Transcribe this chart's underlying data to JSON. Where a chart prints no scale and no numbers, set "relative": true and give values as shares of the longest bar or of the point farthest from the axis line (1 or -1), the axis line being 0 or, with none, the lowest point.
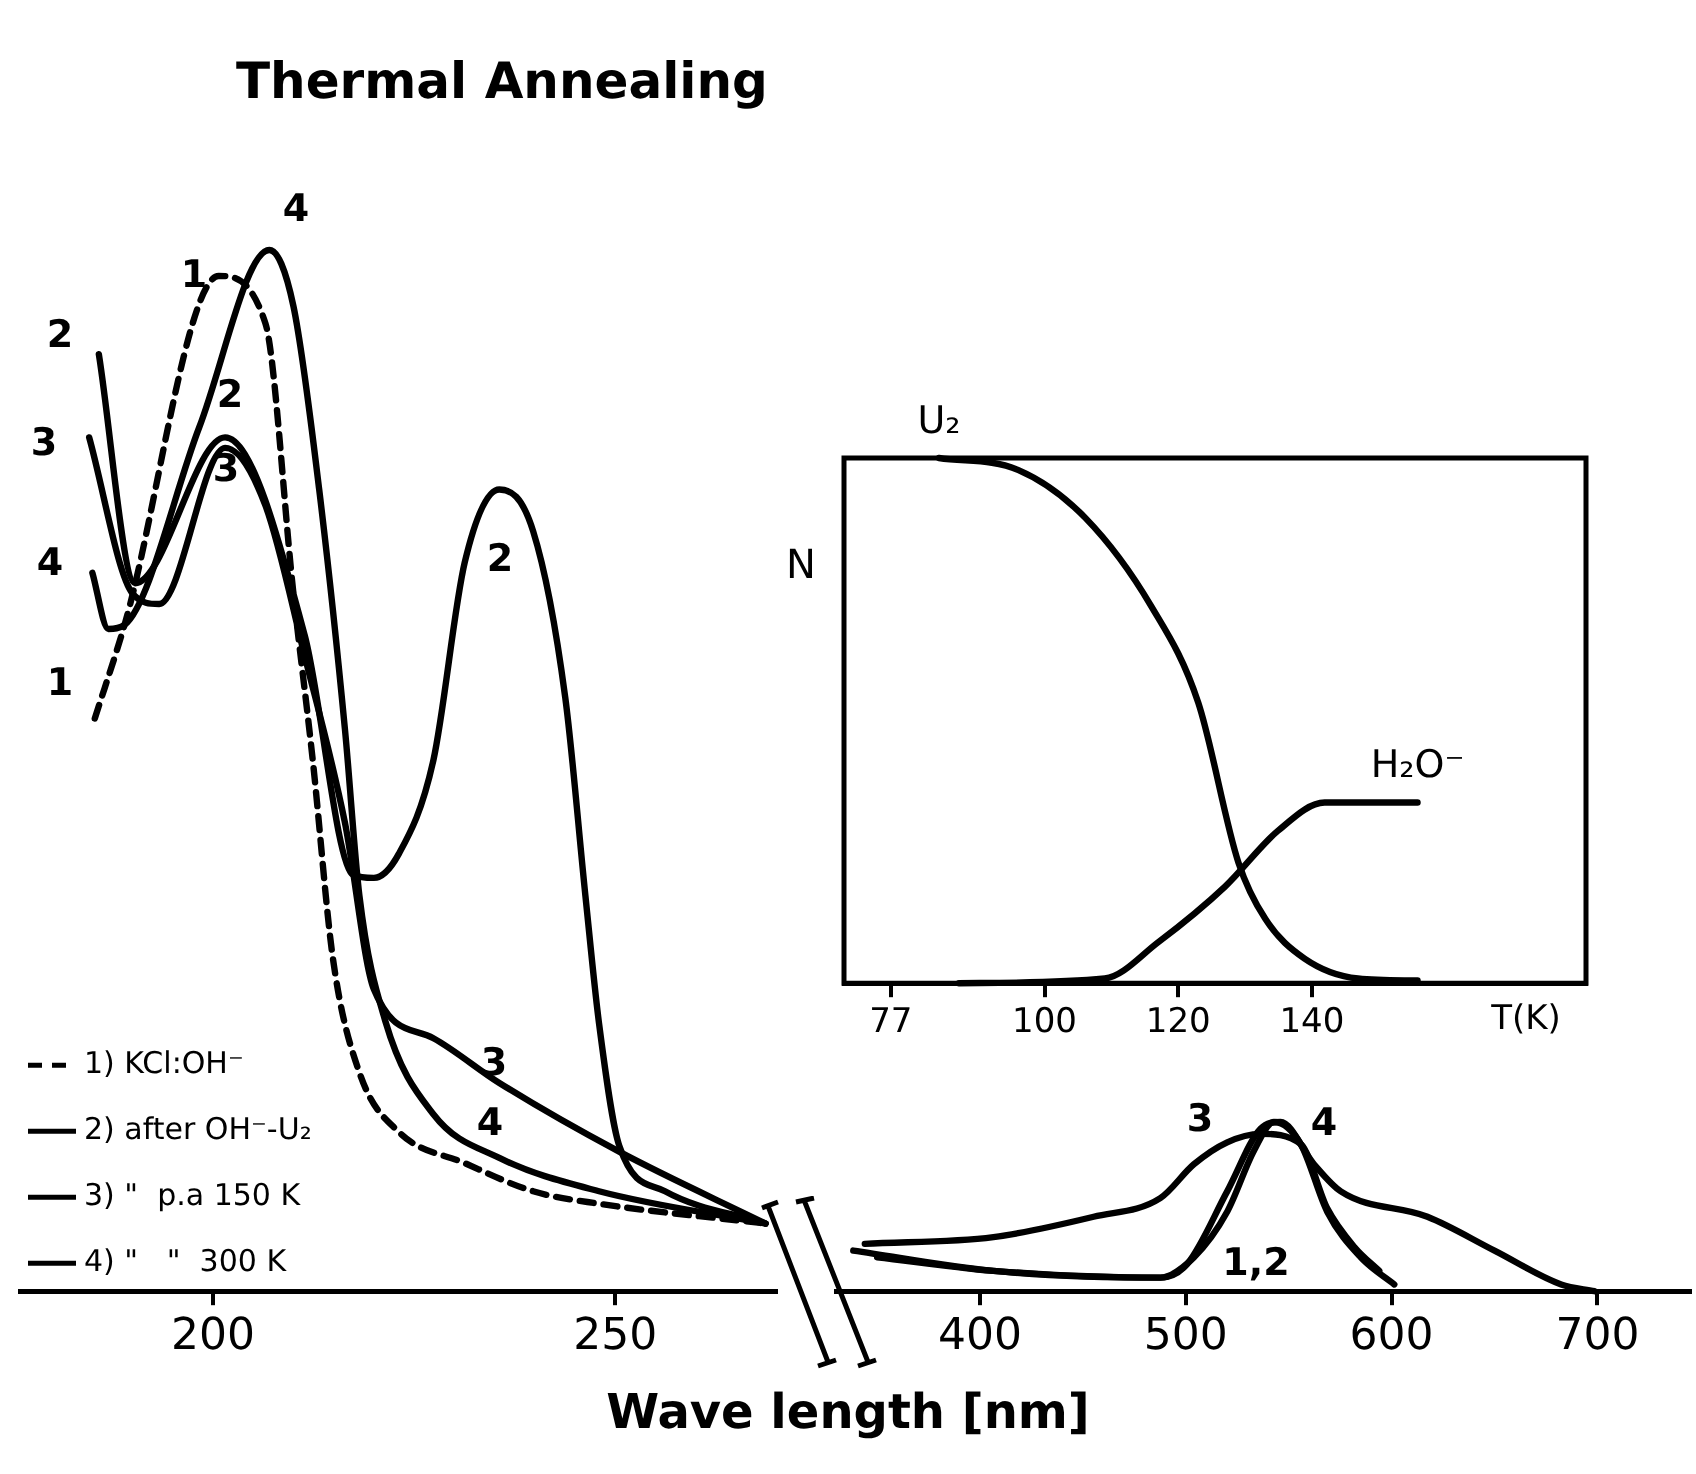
{
  "chart_data": [
    {
      "type": "line",
      "title": "Thermal Annealing",
      "xlabel": "Wave length [nm]",
      "relative": true,
      "xlim": [
        176,
        270
      ],
      "xticks": [
        200,
        250
      ],
      "grid": false,
      "legend": "bottom left",
      "marker": "none",
      "series": [
        {
          "name": "1) KCl:OH⁻",
          "color": "#000000",
          "line_style": "dashed",
          "x": [
            185.3,
            189,
            200.7,
            206.5,
            210,
            212.4,
            214.9,
            218.2,
            223.1,
            231.3,
            239.8,
            248,
            268.7
          ],
          "values": [
            0.55,
            0.64,
            0.975,
            0.93,
            0.67,
            0.51,
            0.32,
            0.21,
            0.153,
            0.123,
            0.096,
            0.084,
            0.065
          ]
        },
        {
          "name": "2) after OH⁻-U₂",
          "color": "#000000",
          "line_style": "solid",
          "x": [
            185.8,
            190.3,
            201.5,
            211.4,
            217.4,
            220,
            223.1,
            227.4,
            231.3,
            235.6,
            239.8,
            243.8,
            246.3,
            248,
            250.5,
            256.2,
            268.7
          ],
          "values": [
            0.9,
            0.68,
            0.82,
            0.63,
            0.4,
            0.397,
            0.42,
            0.51,
            0.7,
            0.77,
            0.73,
            0.57,
            0.38,
            0.257,
            0.14,
            0.096,
            0.065
          ]
        },
        {
          "name": "3) \"  p.a 150 K",
          "color": "#000000",
          "line_style": "solid",
          "x": [
            184.6,
            190,
            193.3,
            201.5,
            206.5,
            211.4,
            216.4,
            220,
            227.4,
            235.6,
            250.5,
            268.7
          ],
          "values": [
            0.82,
            0.67,
            0.66,
            0.81,
            0.755,
            0.61,
            0.45,
            0.29,
            0.243,
            0.2,
            0.134,
            0.065
          ]
        },
        {
          "name": "4) \"   \"  300 K",
          "color": "#000000",
          "line_style": "solid",
          "x": [
            185,
            187,
            189,
            198.3,
            207,
            210,
            213.2,
            216.4,
            218.2,
            221.4,
            227.4,
            235.6,
            248,
            268.7
          ],
          "values": [
            0.69,
            0.636,
            0.64,
            0.83,
            1.0,
            0.946,
            0.77,
            0.54,
            0.38,
            0.26,
            0.17,
            0.128,
            0.096,
            0.065
          ]
        }
      ],
      "annotations": [
        "2",
        "3",
        "4",
        "1",
        "1",
        "4",
        "2",
        "3",
        "2",
        "3",
        "4"
      ]
    },
    {
      "type": "line",
      "relative": true,
      "xlim": [
        330,
        745
      ],
      "xticks": [
        400,
        500,
        600,
        700
      ],
      "grid": false,
      "marker": "none",
      "series": [
        {
          "color": "#000000",
          "x": [
            338.4,
            406.5,
            487.6,
            503.9,
            520.1,
            533.1,
            542.8,
            555.8,
            568.7,
            585,
            601.3
          ],
          "values": [
            0.24,
            0.12,
            0.08,
            0.2,
            0.47,
            0.83,
            1.0,
            0.87,
            0.47,
            0.2,
            0.04
          ]
        },
        {
          "color": "#000000",
          "x": [
            344,
            406.5,
            455.2,
            487.6,
            503.9,
            520.1,
            536.3,
            555.8,
            568.7,
            582,
            594
          ],
          "values": [
            0.28,
            0.32,
            0.44,
            0.55,
            0.75,
            0.88,
            0.93,
            0.87,
            0.49,
            0.26,
            0.12
          ]
        },
        {
          "color": "#000000",
          "x": [
            350,
            406.5,
            487.6,
            500.6,
            520.1,
            536.3,
            546,
            562.3,
            575.3,
            617.4,
            650,
            682.4,
            698.6
          ],
          "values": [
            0.2,
            0.12,
            0.08,
            0.16,
            0.59,
            0.96,
            1.0,
            0.75,
            0.59,
            0.44,
            0.24,
            0.04,
            0
          ]
        }
      ],
      "annotations": [
        "3",
        "4",
        "1,2"
      ]
    },
    {
      "type": "line",
      "relative": true,
      "xlabel": "T(K)",
      "ylabel": "N",
      "xlim": [
        70,
        181
      ],
      "xticks": [
        77,
        100,
        120,
        140
      ],
      "grid": false,
      "marker": "none",
      "series": [
        {
          "name": "U₂",
          "color": "#000000",
          "x": [
            84.2,
            96.1,
            106.1,
            116,
            123,
            129,
            133,
            138.9,
            146.9,
            155.8
          ],
          "values": [
            1.0,
            0.977,
            0.886,
            0.717,
            0.534,
            0.23,
            0.123,
            0.047,
            0.009,
            0.005
          ]
        },
        {
          "name": "H₂O⁻",
          "color": "#000000",
          "x": [
            87.2,
            109,
            117,
            127,
            134.9,
            141.9,
            155.8
          ],
          "values": [
            0,
            0.009,
            0.078,
            0.184,
            0.29,
            0.344,
            0.344
          ]
        }
      ]
    }
  ]
}
